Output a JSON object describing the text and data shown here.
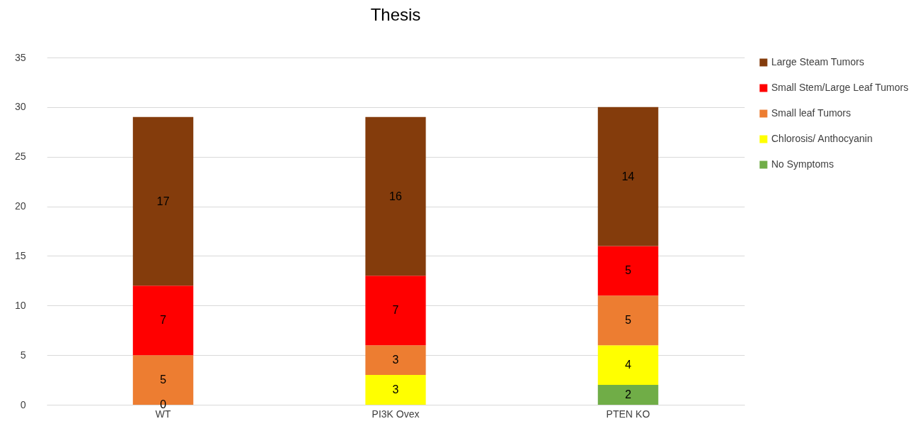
{
  "chart_data": {
    "type": "bar",
    "title": "Thesis",
    "categories": [
      "WT",
      "PI3K Ovex",
      "PTEN KO"
    ],
    "stacked": true,
    "ylim": [
      0,
      35
    ],
    "yticks": [
      0,
      5,
      10,
      15,
      20,
      25,
      30,
      35
    ],
    "grid": "y",
    "legend": "right",
    "annotations": [
      {
        "text": "0",
        "x": "WT",
        "y": 0
      }
    ],
    "series": [
      {
        "name": "No Symptoms",
        "color": "#70ad47",
        "values": [
          null,
          null,
          2
        ],
        "value_labels": [
          null,
          null,
          "2"
        ]
      },
      {
        "name": "Chlorosis/ Anthocyanin",
        "color": "#ffff00",
        "values": [
          null,
          3,
          4
        ],
        "value_labels": [
          null,
          "3",
          "4"
        ]
      },
      {
        "name": "Small leaf Tumors",
        "color": "#ed7d31",
        "values": [
          5,
          3,
          5
        ],
        "value_labels": [
          "5",
          "3",
          "5"
        ]
      },
      {
        "name": "Small Stem/Large Leaf Tumors",
        "color": "#ff0000",
        "values": [
          7,
          7,
          5
        ],
        "value_labels": [
          "7",
          "7",
          "5"
        ]
      },
      {
        "name": "Large Steam Tumors",
        "color": "#843c0c",
        "values": [
          17,
          16,
          14
        ],
        "value_labels": [
          "17",
          "16",
          "14"
        ]
      }
    ]
  }
}
